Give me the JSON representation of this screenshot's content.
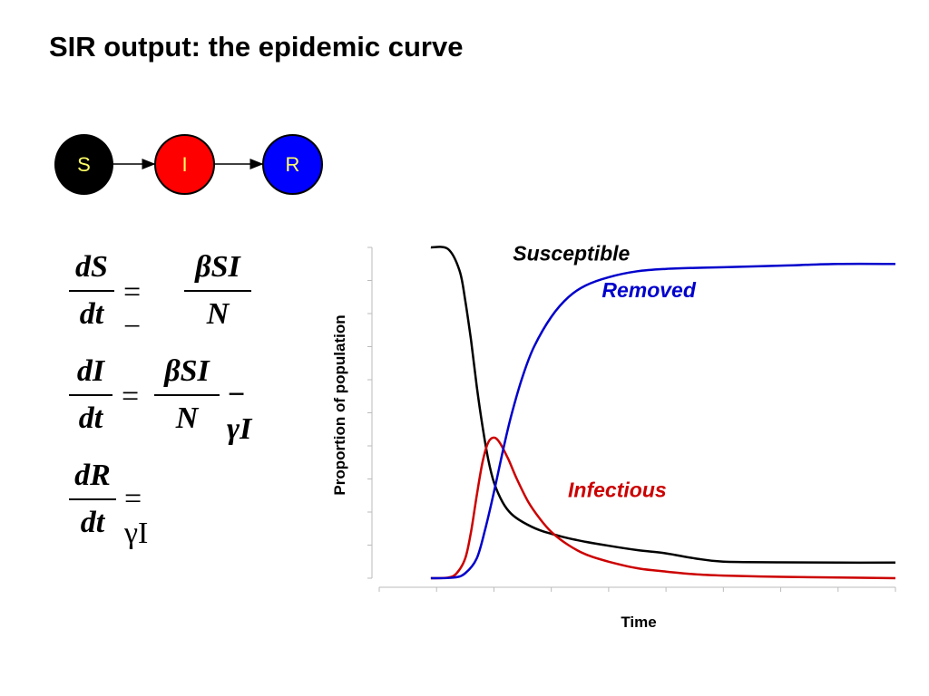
{
  "page": {
    "title": "SIR output: the epidemic curve"
  },
  "diagram": {
    "nodes": [
      {
        "id": "S",
        "label": "S",
        "fill": "#000000",
        "text_color": "#ffff66"
      },
      {
        "id": "I",
        "label": "I",
        "fill": "#ff0000",
        "text_color": "#ffff66"
      },
      {
        "id": "R",
        "label": "R",
        "fill": "#0000ff",
        "text_color": "#ffff66"
      }
    ],
    "edges": [
      {
        "from": "S",
        "to": "I"
      },
      {
        "from": "I",
        "to": "R"
      }
    ]
  },
  "equations": {
    "eq1": {
      "lhs_num": "dS",
      "lhs_den": "dt",
      "sign": "= −",
      "rhs_num": "βSI",
      "rhs_den": "N"
    },
    "eq2": {
      "lhs_num": "dI",
      "lhs_den": "dt",
      "sign": "=",
      "rhs_num": "βSI",
      "rhs_den": "N",
      "tail": "− γI"
    },
    "eq3": {
      "lhs_num": "dR",
      "lhs_den": "dt",
      "sign": "= γI"
    }
  },
  "chart_data": {
    "type": "line",
    "xlabel": "Time",
    "ylabel": "Proportion of population",
    "xlim": [
      0,
      9
    ],
    "ylim": [
      0,
      10
    ],
    "grid": false,
    "x_ticks": 9,
    "y_ticks": 10,
    "series": [
      {
        "name": "Susceptible",
        "color": "#000000",
        "x": [
          0.9,
          1.2,
          1.4,
          1.5,
          1.6,
          1.7,
          1.8,
          1.9,
          2.0,
          2.15,
          2.3,
          2.5,
          2.8,
          3.2,
          3.6,
          4.0,
          4.5,
          5.0,
          5.5,
          6.0,
          7.0,
          8.0,
          9.0
        ],
        "y": [
          10.0,
          9.95,
          9.3,
          8.4,
          7.2,
          5.8,
          4.6,
          3.6,
          2.9,
          2.3,
          1.95,
          1.7,
          1.45,
          1.25,
          1.1,
          0.98,
          0.85,
          0.75,
          0.6,
          0.5,
          0.48,
          0.47,
          0.47
        ]
      },
      {
        "name": "Infectious",
        "color": "#cc0000",
        "x": [
          0.9,
          1.2,
          1.35,
          1.5,
          1.6,
          1.7,
          1.8,
          1.9,
          2.0,
          2.1,
          2.25,
          2.4,
          2.6,
          2.8,
          3.0,
          3.3,
          3.6,
          4.0,
          4.5,
          5.0,
          5.5,
          6.0,
          7.0,
          8.0,
          9.0
        ],
        "y": [
          0.0,
          0.02,
          0.15,
          0.6,
          1.4,
          2.5,
          3.5,
          4.1,
          4.25,
          4.1,
          3.6,
          3.0,
          2.3,
          1.8,
          1.4,
          1.0,
          0.72,
          0.5,
          0.3,
          0.2,
          0.12,
          0.08,
          0.04,
          0.02,
          0.0
        ]
      },
      {
        "name": "Removed",
        "color": "#0000cc",
        "x": [
          0.9,
          1.3,
          1.5,
          1.7,
          1.85,
          2.0,
          2.15,
          2.3,
          2.5,
          2.7,
          3.0,
          3.3,
          3.6,
          4.0,
          4.5,
          5.0,
          5.5,
          6.0,
          7.0,
          8.0,
          9.0
        ],
        "y": [
          0.0,
          0.02,
          0.15,
          0.6,
          1.5,
          2.6,
          3.8,
          4.9,
          6.1,
          7.0,
          7.9,
          8.5,
          8.85,
          9.1,
          9.28,
          9.35,
          9.38,
          9.4,
          9.45,
          9.5,
          9.5
        ]
      }
    ],
    "annotations": [
      {
        "text": "Susceptible",
        "color": "#000000",
        "at_x": 3.35,
        "at_y": 9.6
      },
      {
        "text": "Removed",
        "color": "#0000cc",
        "at_x": 4.7,
        "at_y": 8.5
      },
      {
        "text": "Infectious",
        "color": "#cc0000",
        "at_x": 4.15,
        "at_y": 2.45
      }
    ]
  }
}
